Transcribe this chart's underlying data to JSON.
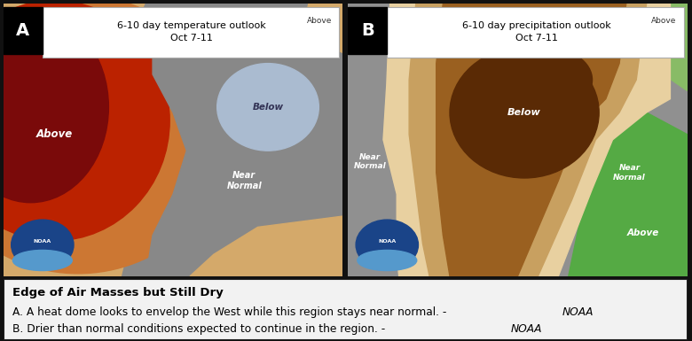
{
  "title": "Edge of Air Masses but Still Dry",
  "line_a": "A. A heat dome looks to envelop the West while this region stays near normal. - ",
  "line_a_italic": "NOAA",
  "line_b": "B. Drier than normal conditions expected to continue in the region. - ",
  "line_b_italic": "NOAA",
  "panel_a_title": "6-10 day temperature outlook\nOct 7-11",
  "panel_b_title": "6-10 day precipitation outlook\nOct 7-11",
  "panel_a_label": "A",
  "panel_b_label": "B",
  "fig_bg": "#111111",
  "caption_bg": "#f2f2f2",
  "caption_border": "#222222",
  "temp_colors": {
    "tan": "#d4a96a",
    "orange": "#cc7733",
    "red": "#bb2200",
    "dark_red": "#7a0a0a",
    "gray": "#888888",
    "blue": "#aabbd0",
    "gray_ne": "#999999"
  },
  "precip_colors": {
    "gray": "#909090",
    "light_tan": "#e8d0a0",
    "tan": "#c8a060",
    "brown": "#9a6020",
    "dark_brown": "#5a2a05",
    "green_light": "#88bb66",
    "green": "#55aa44"
  }
}
